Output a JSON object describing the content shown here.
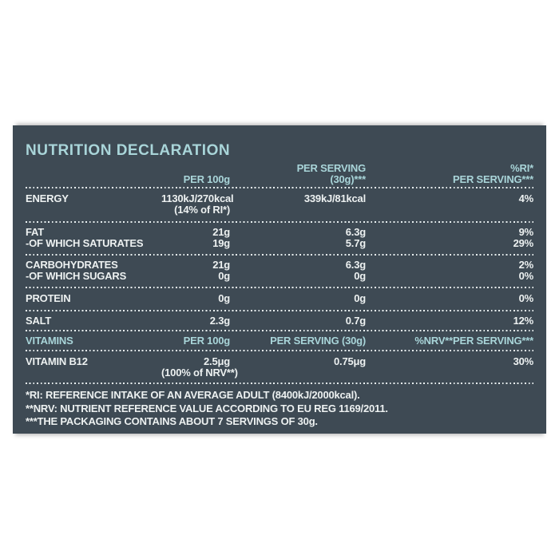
{
  "colors": {
    "page_bg": "#ffffff",
    "panel_bg": "#3e4a54",
    "accent_cyan": "#a9d5d9",
    "text_white": "#edf1f1"
  },
  "title": "NUTRITION DECLARATION",
  "table_header": {
    "per100g": "PER 100g",
    "per_serving_line1": "PER SERVING",
    "per_serving_line2": "(30g)***",
    "ri_line1": "%RI*",
    "ri_line2": "PER SERVING***"
  },
  "sections": [
    {
      "rows": [
        {
          "label": "ENERGY",
          "per100g": "1130kJ/270kcal",
          "per100g_note": "(14% of RI*)",
          "per_serving": "339kJ/81kcal",
          "ri": "4%"
        }
      ]
    },
    {
      "rows": [
        {
          "label": "FAT",
          "per100g": "21g",
          "per_serving": "6.3g",
          "ri": "9%"
        },
        {
          "label": "-OF WHICH SATURATES",
          "per100g": "19g",
          "per_serving": "5.7g",
          "ri": "29%"
        }
      ]
    },
    {
      "rows": [
        {
          "label": "CARBOHYDRATES",
          "per100g": "21g",
          "per_serving": "6.3g",
          "ri": "2%"
        },
        {
          "label": "-OF WHICH SUGARS",
          "per100g": "0g",
          "per_serving": "0g",
          "ri": "0%"
        }
      ]
    },
    {
      "rows": [
        {
          "label": "PROTEIN",
          "per100g": "0g",
          "per_serving": "0g",
          "ri": "0%"
        }
      ]
    },
    {
      "rows": [
        {
          "label": "SALT",
          "per100g": "2.3g",
          "per_serving": "0.7g",
          "ri": "12%"
        }
      ]
    }
  ],
  "vitamins_header": {
    "label": "VITAMINS",
    "per100g": "PER 100g",
    "per_serving": "PER SERVING (30g)",
    "nrv": "%NRV**PER SERVING***"
  },
  "vitamins": [
    {
      "label": "VITAMIN B12",
      "per100g": "2.5μg",
      "per100g_note": "(100% of NRV**)",
      "per_serving": "0.75μg",
      "nrv": "30%"
    }
  ],
  "footnotes": [
    "*RI: REFERENCE INTAKE OF AN AVERAGE ADULT (8400kJ/2000kcal).",
    "**NRV: NUTRIENT REFERENCE VALUE ACCORDING TO EU REG 1169/2011.",
    "***THE PACKAGING CONTAINS ABOUT 7 SERVINGS OF 30g."
  ]
}
